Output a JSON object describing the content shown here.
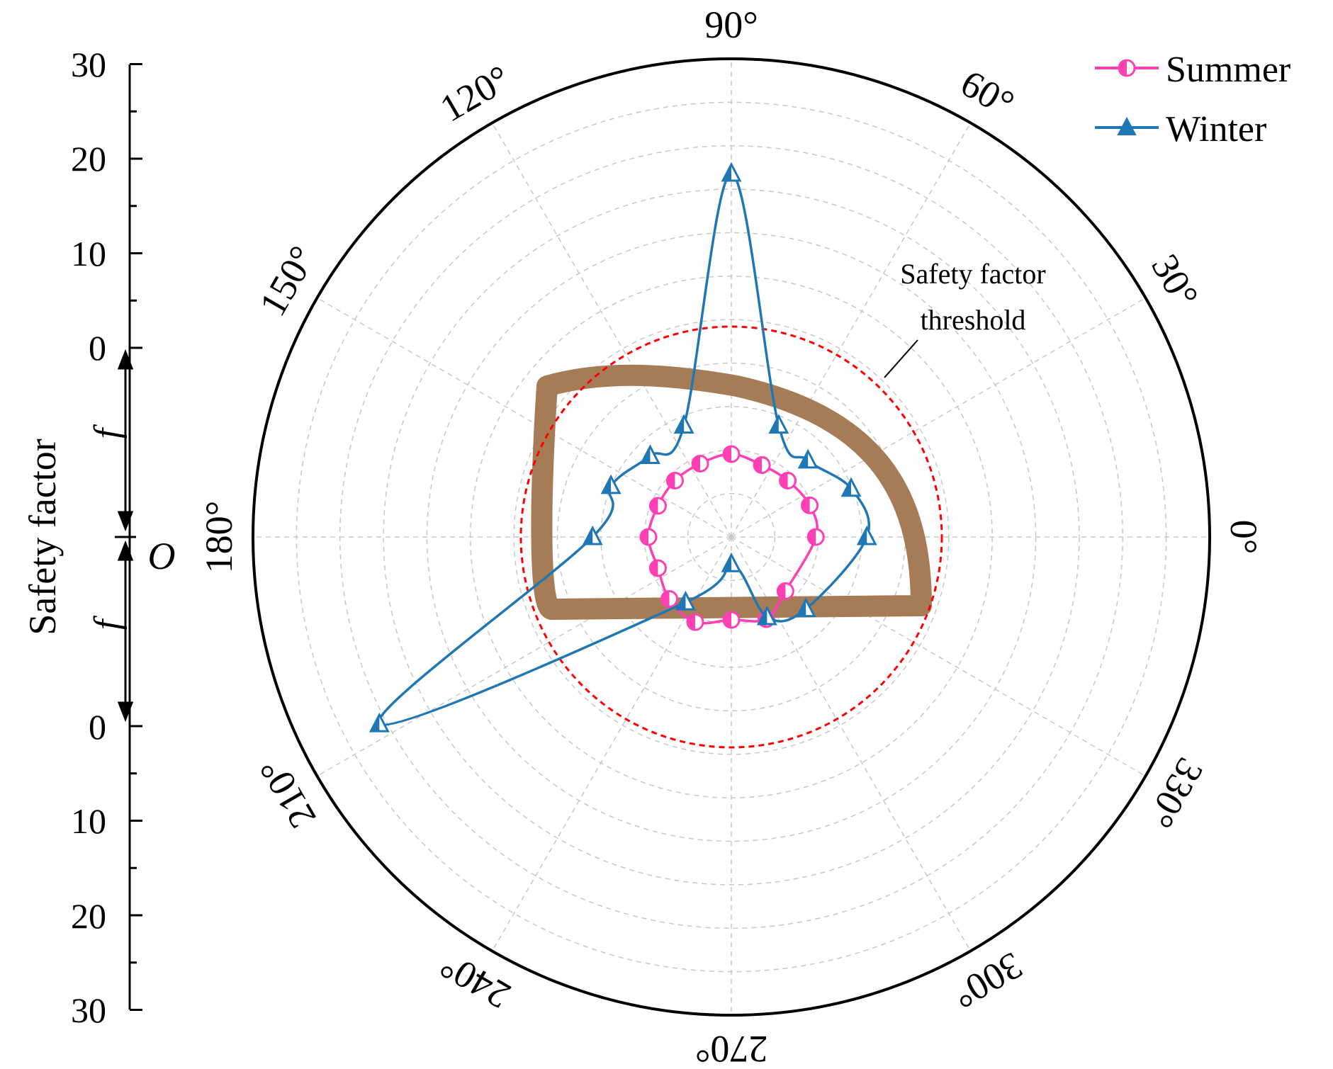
{
  "chart_data": {
    "type": "polar-line",
    "y_axis": {
      "label": "Safety factor",
      "ticks_upper": [
        "30",
        "20",
        "10",
        "0"
      ],
      "ticks_lower": [
        "0",
        "10",
        "20",
        "30"
      ],
      "upper_var": "f",
      "lower_var": "f",
      "origin_label": "O"
    },
    "radial_range": [
      0,
      30
    ],
    "angle_labels": [
      "0°",
      "30°",
      "60°",
      "90°",
      "120°",
      "150°",
      "180°",
      "210°",
      "240°",
      "270°",
      "300°",
      "330°"
    ],
    "legend": {
      "position": "top-right",
      "entries": [
        {
          "name": "Summer",
          "color": "#ff3fb4",
          "marker": "half-circle"
        },
        {
          "name": "Winter",
          "color": "#1f77b4",
          "marker": "triangle"
        }
      ]
    },
    "series": [
      {
        "name": "Summer",
        "color": "#ff3fb4",
        "angles": [
          0,
          22,
          45,
          67,
          90,
          113,
          135,
          157,
          180,
          203,
          225,
          247,
          270,
          293,
          315
        ],
        "values": [
          5.3,
          5.3,
          5.0,
          4.9,
          5.2,
          5.0,
          5.0,
          5.0,
          5.2,
          5.0,
          5.5,
          5.8,
          5.2,
          5.6,
          4.8
        ]
      },
      {
        "name": "Winter",
        "color": "#1f77b4",
        "angles": [
          0,
          22,
          45,
          67,
          90,
          113,
          135,
          157,
          180,
          208,
          235,
          270,
          294,
          316
        ],
        "values": [
          8.5,
          8.1,
          6.8,
          7.6,
          22.8,
          7.6,
          7.2,
          8.2,
          8.7,
          25.0,
          5.0,
          1.7,
          5.5,
          6.5
        ]
      }
    ],
    "threshold": {
      "label_line1": "Safety factor",
      "label_line2": "threshold",
      "color": "#ff0000",
      "style": "dashed"
    },
    "tunnel_outline": {
      "color": "#a67c57"
    }
  }
}
